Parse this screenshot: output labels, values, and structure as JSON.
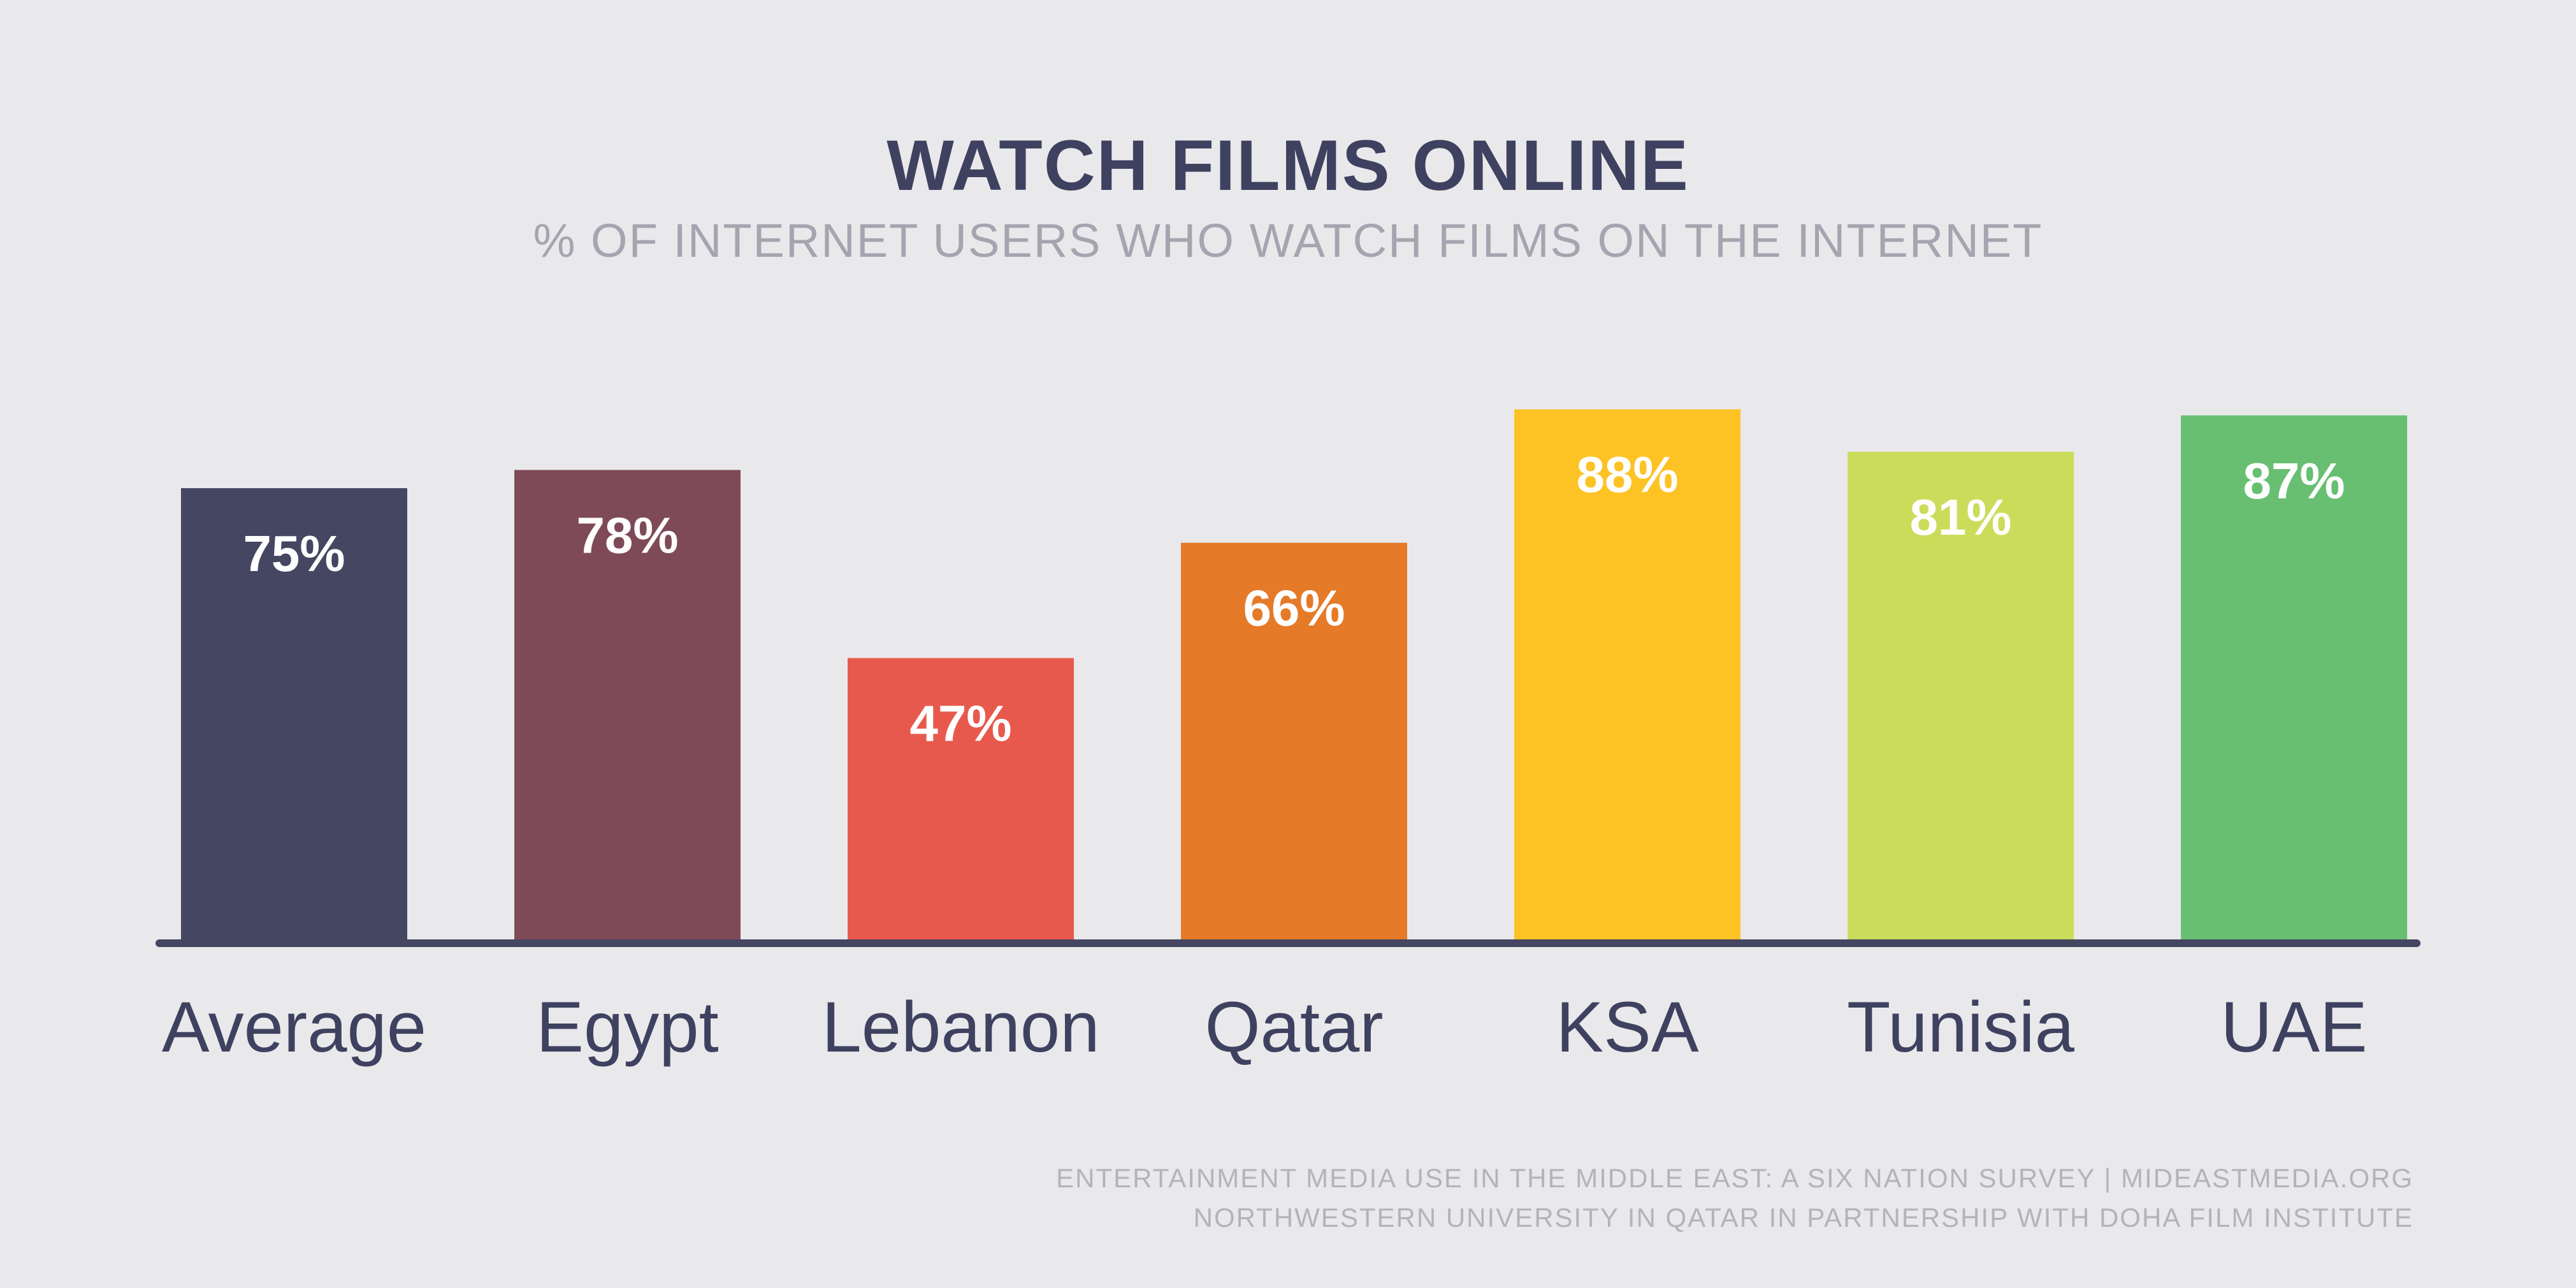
{
  "chart_data": {
    "type": "bar",
    "title": "WATCH FILMS ONLINE",
    "subtitle": "% OF INTERNET USERS WHO WATCH FILMS ON THE INTERNET",
    "categories": [
      "Average",
      "Egypt",
      "Lebanon",
      "Qatar",
      "KSA",
      "Tunisia",
      "UAE"
    ],
    "values": [
      75,
      78,
      47,
      66,
      88,
      81,
      87
    ],
    "value_labels": [
      "75%",
      "78%",
      "47%",
      "66%",
      "88%",
      "81%",
      "87%"
    ],
    "colors": [
      "#454661",
      "#7e4a57",
      "#e8594d",
      "#e57a28",
      "#fdc325",
      "#cbdc5a",
      "#68bf72"
    ],
    "ylim": [
      0,
      100
    ],
    "grid": false,
    "legend": "none",
    "xlabel": "",
    "ylabel": ""
  },
  "footer": {
    "line1": "ENTERTAINMENT MEDIA USE IN THE MIDDLE EAST: A SIX NATION SURVEY | MIDEASTMEDIA.ORG",
    "line2": "NORTHWESTERN UNIVERSITY IN QATAR IN PARTNERSHIP WITH DOHA FILM INSTITUTE"
  },
  "colors": {
    "background": "#e9e9eb",
    "axis": "#454661",
    "title": "#3f4160",
    "subtitle": "#a5a5b0",
    "footer": "#b3b3bb"
  }
}
